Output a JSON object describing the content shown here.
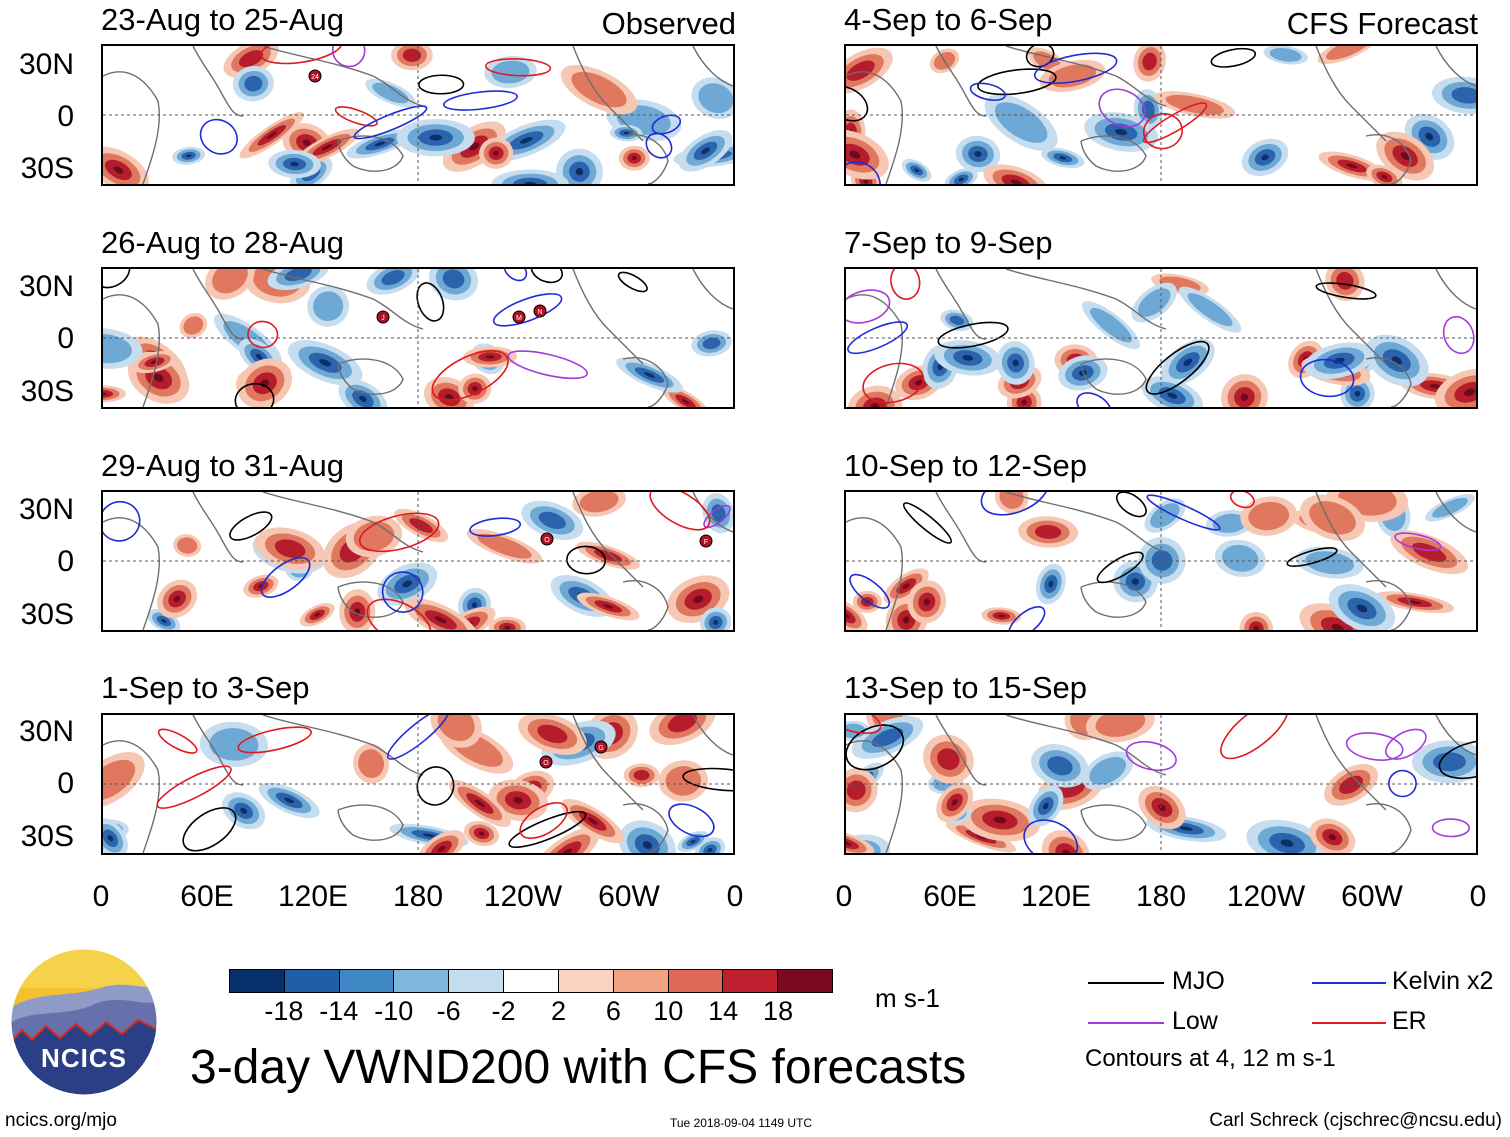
{
  "header": {
    "left_label": "Observed",
    "right_label": "CFS Forecast"
  },
  "panels": {
    "left": [
      "23-Aug to 25-Aug",
      "26-Aug to 28-Aug",
      "29-Aug to 31-Aug",
      "1-Sep to 3-Sep"
    ],
    "right": [
      "4-Sep to 6-Sep",
      "7-Sep to 9-Sep",
      "10-Sep to 12-Sep",
      "13-Sep to 15-Sep"
    ]
  },
  "axes": {
    "lat_labels": [
      "30N",
      "0",
      "30S"
    ],
    "lon_labels": [
      "0",
      "60E",
      "120E",
      "180",
      "120W",
      "60W",
      "0"
    ]
  },
  "colorbar": {
    "ticks": [
      "-18",
      "-14",
      "-10",
      "-6",
      "-2",
      "2",
      "6",
      "10",
      "14",
      "18"
    ],
    "colors": [
      "#08306b",
      "#1f5fa8",
      "#3f88c5",
      "#7fb6dc",
      "#c4ddef",
      "#ffffff",
      "#fbd3c0",
      "#f2a383",
      "#e06a57",
      "#bf1f2f",
      "#7a0a1f"
    ],
    "units": "m s-1"
  },
  "legend": {
    "items": [
      {
        "label": "MJO",
        "color": "#000000"
      },
      {
        "label": "Kelvin x2",
        "color": "#1f2bd6"
      },
      {
        "label": "Low",
        "color": "#a23bdb"
      },
      {
        "label": "ER",
        "color": "#e0191f"
      }
    ],
    "contour_note": "Contours at 4, 12 m s-1"
  },
  "logo": {
    "text": "NCICS"
  },
  "title": "3-day VWND200 with CFS forecasts",
  "footer": {
    "url": "ncics.org/mjo",
    "timestamp": "Tue 2018-09-04 1149 UTC",
    "author": "Carl Schreck (cjschrec@ncsu.edu)"
  },
  "storm_markers": [
    {
      "label": "24"
    },
    {
      "label": "J"
    },
    {
      "label": "M"
    },
    {
      "label": "N"
    },
    {
      "label": "O"
    },
    {
      "label": "F"
    },
    {
      "label": "O"
    },
    {
      "label": "G"
    }
  ]
}
